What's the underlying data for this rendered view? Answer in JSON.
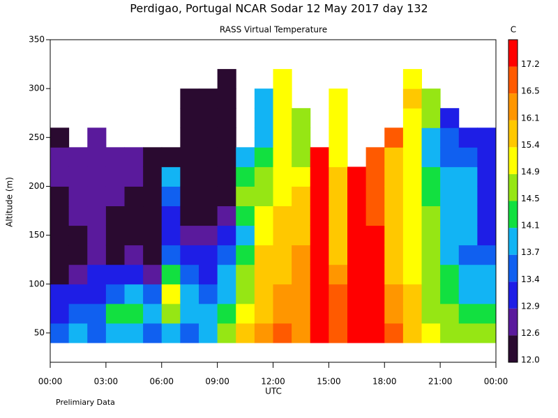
{
  "chart_data": {
    "type": "heatmap",
    "title": "Perdigao, Portugal  NCAR Sodar  12 May 2017  day 132",
    "subtitle": "RASS Virtual Temperature",
    "ylabel": "Altitude (m)",
    "xlabel": "UTC",
    "footnote": "Prelimiary Data",
    "colorbar_label": "C",
    "xlim": [
      0,
      24
    ],
    "xticks": [
      {
        "value": 0,
        "label": "00:00"
      },
      {
        "value": 3,
        "label": "03:00"
      },
      {
        "value": 6,
        "label": "06:00"
      },
      {
        "value": 9,
        "label": "09:00"
      },
      {
        "value": 12,
        "label": "12:00"
      },
      {
        "value": 15,
        "label": "15:00"
      },
      {
        "value": 18,
        "label": "18:00"
      },
      {
        "value": 21,
        "label": "21:00"
      },
      {
        "value": 24,
        "label": "00:00"
      }
    ],
    "ylim": [
      20,
      350
    ],
    "yticks": [
      50,
      100,
      150,
      200,
      250,
      300,
      350
    ],
    "levels": [
      12.0,
      12.6,
      12.9,
      13.4,
      13.7,
      14.1,
      14.5,
      14.9,
      15.4,
      16.1,
      16.5,
      17.2
    ],
    "colorbar_ticks": [
      {
        "value": 12.0,
        "label": "12.0"
      },
      12.6,
      12.9,
      13.4,
      13.7,
      14.1,
      14.5,
      14.9,
      15.4,
      16.1,
      16.5,
      17.2
    ],
    "colors": [
      "#2a0a30",
      "#5a1a9c",
      "#1e1ee6",
      "#1060f0",
      "#12b4f4",
      "#12e040",
      "#96e614",
      "#ffff00",
      "#ffc800",
      "#ff9600",
      "#ff5a00",
      "#ff0000"
    ],
    "x": [
      0.5,
      1.5,
      2.5,
      3.5,
      4.5,
      5.5,
      6.5,
      7.5,
      8.5,
      9.5,
      10.5,
      11.5,
      12.5,
      13.5,
      14.5,
      15.5,
      16.5,
      17.5,
      18.5,
      19.5,
      20.5,
      21.5,
      22.5,
      23.5
    ],
    "y": [
      50,
      70,
      90,
      110,
      130,
      150,
      170,
      190,
      210,
      230,
      250,
      270,
      290,
      310,
      330
    ],
    "values": [
      [
        13.5,
        13.0,
        12.9,
        12.5,
        12.5,
        12.3,
        12.3,
        12.5,
        12.7,
        12.7,
        12.3,
        null,
        null,
        null,
        null
      ],
      [
        13.8,
        13.5,
        13.0,
        12.7,
        12.5,
        12.3,
        12.7,
        12.7,
        12.8,
        12.7,
        null,
        null,
        null,
        null,
        null
      ],
      [
        13.5,
        13.6,
        13.0,
        12.9,
        12.8,
        12.7,
        12.7,
        12.8,
        12.7,
        12.7,
        12.7,
        null,
        null,
        null,
        null
      ],
      [
        13.8,
        14.2,
        13.5,
        13.0,
        12.5,
        12.3,
        12.4,
        12.7,
        12.7,
        12.7,
        null,
        null,
        null,
        null,
        null
      ],
      [
        14.0,
        14.2,
        13.8,
        13.2,
        12.8,
        12.3,
        12.2,
        12.2,
        12.7,
        12.7,
        null,
        null,
        null,
        null,
        null
      ],
      [
        13.5,
        13.8,
        13.5,
        12.8,
        12.3,
        12.2,
        12.2,
        12.2,
        12.2,
        12.3,
        null,
        null,
        null,
        null,
        null
      ],
      [
        13.8,
        14.5,
        15.0,
        14.2,
        13.5,
        13.0,
        13.2,
        13.5,
        13.8,
        12.5,
        null,
        null,
        null,
        null,
        null
      ],
      [
        13.5,
        13.7,
        13.8,
        13.4,
        13.0,
        12.6,
        12.3,
        12.2,
        12.3,
        12.2,
        12.2,
        12.2,
        12.2,
        null,
        null
      ],
      [
        13.8,
        14.0,
        13.5,
        13.0,
        13.2,
        12.8,
        12.5,
        12.2,
        12.2,
        12.2,
        12.2,
        12.2,
        12.2,
        null,
        null
      ],
      [
        14.5,
        14.2,
        13.8,
        13.7,
        13.5,
        13.2,
        12.8,
        12.5,
        12.3,
        12.2,
        12.2,
        12.2,
        12.2,
        12.2,
        null
      ],
      [
        15.5,
        15.2,
        14.8,
        14.5,
        14.3,
        14.0,
        14.3,
        14.5,
        14.2,
        13.8,
        null,
        null,
        null,
        null,
        null
      ],
      [
        16.3,
        16.0,
        15.8,
        15.6,
        15.5,
        15.2,
        15.0,
        14.8,
        14.6,
        14.3,
        13.9,
        13.8,
        13.7,
        null,
        null
      ],
      [
        16.6,
        16.4,
        16.2,
        16.0,
        16.0,
        15.8,
        15.5,
        15.2,
        15.0,
        14.9,
        14.9,
        15.0,
        15.0,
        15.0,
        null
      ],
      [
        16.4,
        16.3,
        16.3,
        16.3,
        16.2,
        16.0,
        16.0,
        15.5,
        15.3,
        14.8,
        14.5,
        14.8,
        null,
        null,
        null
      ],
      [
        17.3,
        17.4,
        17.4,
        17.3,
        17.3,
        17.3,
        17.3,
        17.3,
        17.3,
        17.2,
        null,
        null,
        null,
        null,
        null
      ],
      [
        17.0,
        16.8,
        16.6,
        16.2,
        16.0,
        15.8,
        15.6,
        15.5,
        15.4,
        15.2,
        15.0,
        15.0,
        15.0,
        null,
        null
      ],
      [
        17.4,
        17.4,
        17.4,
        17.3,
        17.3,
        17.3,
        17.3,
        17.3,
        17.3,
        null,
        null,
        null,
        null,
        null,
        null
      ],
      [
        17.3,
        17.3,
        17.3,
        17.3,
        17.3,
        17.2,
        17.0,
        16.8,
        16.6,
        16.5,
        null,
        null,
        null,
        null,
        null
      ],
      [
        16.5,
        16.3,
        16.2,
        16.0,
        15.8,
        15.6,
        15.5,
        15.5,
        15.6,
        16.0,
        16.6,
        null,
        null,
        null,
        null
      ],
      [
        15.8,
        15.6,
        15.4,
        15.2,
        15.0,
        15.0,
        14.9,
        14.9,
        15.0,
        15.0,
        15.1,
        15.3,
        15.5,
        15.0,
        null
      ],
      [
        14.9,
        14.8,
        14.6,
        14.5,
        14.6,
        14.7,
        14.5,
        14.3,
        14.1,
        13.8,
        13.8,
        14.5,
        14.6,
        null,
        null
      ],
      [
        14.8,
        14.6,
        14.3,
        14.1,
        13.8,
        13.8,
        13.8,
        13.7,
        13.7,
        13.6,
        13.5,
        13.0,
        null,
        null,
        null
      ],
      [
        14.5,
        14.2,
        13.9,
        13.8,
        13.6,
        13.8,
        13.8,
        13.8,
        13.7,
        13.5,
        13.0,
        null,
        null,
        null,
        null
      ],
      [
        14.8,
        14.3,
        14.0,
        13.9,
        13.5,
        13.3,
        13.2,
        13.0,
        12.9,
        13.1,
        13.2,
        null,
        null,
        null,
        null
      ]
    ]
  }
}
